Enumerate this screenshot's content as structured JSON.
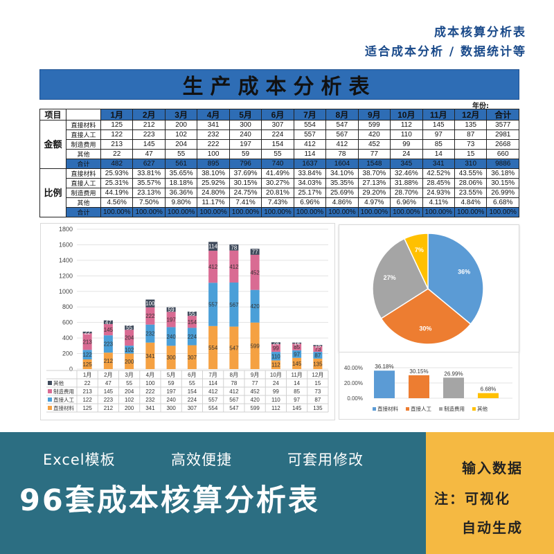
{
  "promo": {
    "tagline1": "成本核算分析表",
    "tagline2": "适合成本分析 / 数据统计等",
    "features": [
      "Excel模板",
      "高效便捷",
      "可套用修改"
    ],
    "big_title": "96套成本核算分析表",
    "side_lines": [
      "输入数据",
      "注：可视化",
      "自动生成"
    ]
  },
  "sheet": {
    "title": "生产成本分析表",
    "year_label": "年份:",
    "header_item": "项目",
    "months": [
      "1月",
      "2月",
      "3月",
      "4月",
      "5月",
      "6月",
      "7月",
      "8月",
      "9月",
      "10月",
      "11月",
      "12月"
    ],
    "total_label": "合计",
    "amount_group": "金额",
    "ratio_group": "比例",
    "amount_rows": [
      {
        "label": "直接材料",
        "values": [
          "125",
          "212",
          "200",
          "341",
          "300",
          "307",
          "554",
          "547",
          "599",
          "112",
          "145",
          "135"
        ],
        "total": "3577"
      },
      {
        "label": "直接人工",
        "values": [
          "122",
          "223",
          "102",
          "232",
          "240",
          "224",
          "557",
          "567",
          "420",
          "110",
          "97",
          "87"
        ],
        "total": "2981"
      },
      {
        "label": "制造费用",
        "values": [
          "213",
          "145",
          "204",
          "222",
          "197",
          "154",
          "412",
          "412",
          "452",
          "99",
          "85",
          "73"
        ],
        "total": "2668"
      },
      {
        "label": "其他",
        "values": [
          "22",
          "47",
          "55",
          "100",
          "59",
          "55",
          "114",
          "78",
          "77",
          "24",
          "14",
          "15"
        ],
        "total": "660"
      },
      {
        "label": "合计",
        "values": [
          "482",
          "627",
          "561",
          "895",
          "796",
          "740",
          "1637",
          "1604",
          "1548",
          "345",
          "341",
          "310"
        ],
        "total": "9886"
      }
    ],
    "ratio_rows": [
      {
        "label": "直接材料",
        "values": [
          "25.93%",
          "33.81%",
          "35.65%",
          "38.10%",
          "37.69%",
          "41.49%",
          "33.84%",
          "34.10%",
          "38.70%",
          "32.46%",
          "42.52%",
          "43.55%"
        ],
        "total": "36.18%"
      },
      {
        "label": "直接人工",
        "values": [
          "25.31%",
          "35.57%",
          "18.18%",
          "25.92%",
          "30.15%",
          "30.27%",
          "34.03%",
          "35.35%",
          "27.13%",
          "31.88%",
          "28.45%",
          "28.06%"
        ],
        "total": "30.15%"
      },
      {
        "label": "制造费用",
        "values": [
          "44.19%",
          "23.13%",
          "36.36%",
          "24.80%",
          "24.75%",
          "20.81%",
          "25.17%",
          "25.69%",
          "29.20%",
          "28.70%",
          "24.93%",
          "23.55%"
        ],
        "total": "26.99%"
      },
      {
        "label": "其他",
        "values": [
          "4.56%",
          "7.50%",
          "9.80%",
          "11.17%",
          "7.41%",
          "7.43%",
          "6.96%",
          "4.86%",
          "4.97%",
          "6.96%",
          "4.11%",
          "4.84%"
        ],
        "total": "6.68%"
      },
      {
        "label": "合计",
        "values": [
          "100.00%",
          "100.00%",
          "100.00%",
          "100.00%",
          "100.00%",
          "100.00%",
          "100.00%",
          "100.00%",
          "100.00%",
          "100.00%",
          "100.00%",
          "100.00%"
        ],
        "total": "100.00%"
      }
    ]
  },
  "chart_data": [
    {
      "type": "bar",
      "stacked": true,
      "categories": [
        "1月",
        "2月",
        "3月",
        "4月",
        "5月",
        "6月",
        "7月",
        "8月",
        "9月",
        "10月",
        "11月",
        "12月"
      ],
      "ylim": [
        0,
        1800
      ],
      "yticks": [
        0,
        200,
        400,
        600,
        800,
        1000,
        1200,
        1400,
        1600,
        1800
      ],
      "grid": true,
      "legend": "table-below",
      "series": [
        {
          "name": "直接材料",
          "color": "#f5a142",
          "values": [
            125,
            212,
            200,
            341,
            300,
            307,
            554,
            547,
            599,
            112,
            145,
            135
          ]
        },
        {
          "name": "直接人工",
          "color": "#4a9fd8",
          "values": [
            122,
            223,
            102,
            232,
            240,
            224,
            557,
            567,
            420,
            110,
            97,
            87
          ]
        },
        {
          "name": "制造费用",
          "color": "#d96b93",
          "values": [
            213,
            145,
            204,
            222,
            197,
            154,
            412,
            412,
            452,
            99,
            85,
            73
          ]
        },
        {
          "name": "其他",
          "color": "#404b5c",
          "values": [
            22,
            47,
            55,
            100,
            59,
            55,
            114,
            78,
            77,
            24,
            14,
            15
          ]
        }
      ]
    },
    {
      "type": "pie",
      "labels": [
        "直接材料",
        "直接人工",
        "制造费用",
        "其他"
      ],
      "values": [
        36,
        30,
        27,
        7
      ],
      "display": [
        "36%",
        "30%",
        "27%",
        "7%"
      ],
      "colors": [
        "#5b9bd5",
        "#ed7d31",
        "#a5a5a5",
        "#ffc000"
      ]
    },
    {
      "type": "bar",
      "categories": [
        "直接材料",
        "直接人工",
        "制造费用",
        "其他"
      ],
      "values": [
        36.18,
        30.15,
        26.99,
        6.68
      ],
      "labels": [
        "36.18%",
        "30.15%",
        "26.99%",
        "6.68%"
      ],
      "colors": [
        "#5b9bd5",
        "#ed7d31",
        "#a5a5a5",
        "#ffc000"
      ],
      "ylim": [
        0,
        40
      ],
      "yticks": [
        "0.00%",
        "20.00%",
        "40.00%"
      ],
      "legend": "bottom"
    }
  ]
}
